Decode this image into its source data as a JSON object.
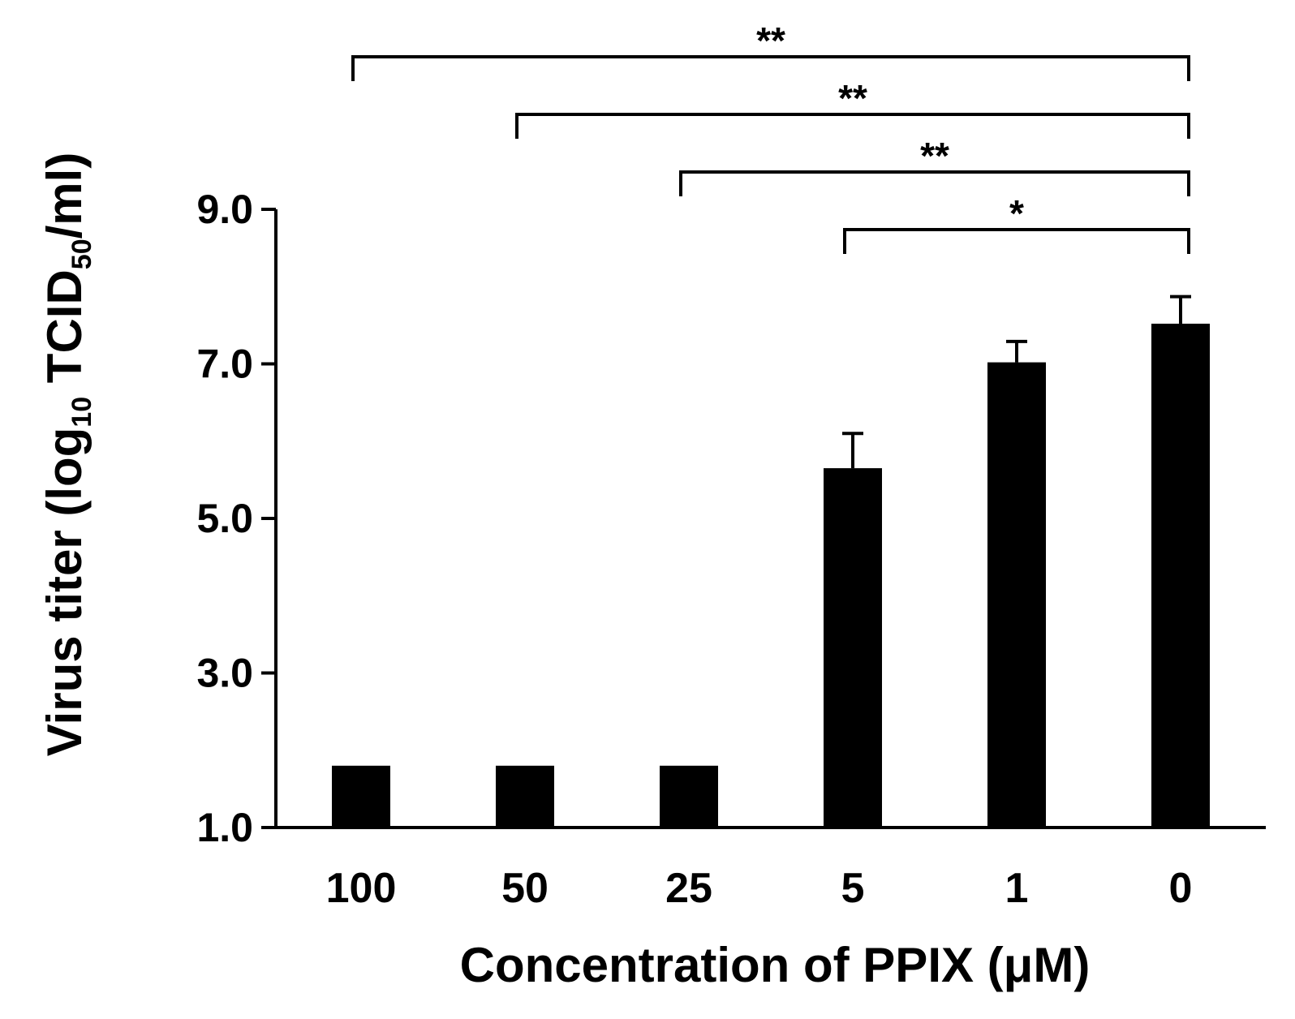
{
  "chart_data": {
    "type": "bar",
    "title": "",
    "xlabel": "Concentration of PPIX (μM)",
    "ylabel": {
      "prefix": "Virus titer (log",
      "sub1": "10",
      "mid": " TCID",
      "sub2": "50",
      "suffix": "/ml)"
    },
    "categories": [
      "100",
      "50",
      "25",
      "5",
      "1",
      "0"
    ],
    "values": [
      1.8,
      1.8,
      1.8,
      5.65,
      7.02,
      7.52
    ],
    "errors": [
      0,
      0,
      0,
      0.45,
      0.27,
      0.35
    ],
    "ylim": [
      1.0,
      9.0
    ],
    "yticks": [
      1.0,
      3.0,
      5.0,
      7.0,
      9.0
    ],
    "ytick_labels": [
      "1.0",
      "3.0",
      "5.0",
      "7.0",
      "9.0"
    ],
    "bar_color": "#000000",
    "grid": false,
    "legend": false,
    "significance": [
      {
        "from": 0,
        "to": 5,
        "label": "**"
      },
      {
        "from": 1,
        "to": 5,
        "label": "**"
      },
      {
        "from": 2,
        "to": 5,
        "label": "**"
      },
      {
        "from": 3,
        "to": 5,
        "label": "*"
      }
    ]
  }
}
